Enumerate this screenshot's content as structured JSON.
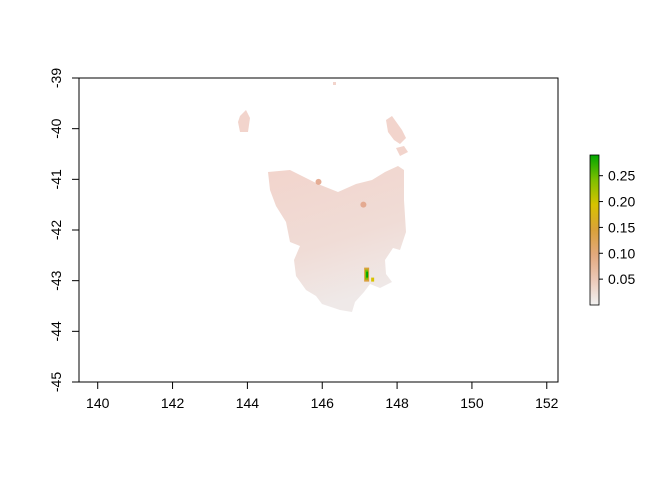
{
  "chart_data": {
    "type": "heatmap",
    "title": "",
    "xlabel": "",
    "ylabel": "",
    "xlim": [
      139.5,
      152.3
    ],
    "ylim": [
      -45,
      -39
    ],
    "x_ticks": [
      "140",
      "142",
      "144",
      "146",
      "148",
      "150",
      "152"
    ],
    "y_ticks": [
      "-39",
      "-40",
      "-41",
      "-42",
      "-43",
      "-44",
      "-45"
    ],
    "legend": {
      "placement": "right",
      "ticks": [
        "0.05",
        "0.10",
        "0.15",
        "0.20",
        "0.25"
      ],
      "range": [
        0.0,
        0.29
      ],
      "colors": [
        "#f2f2f2",
        "#ecc9b8",
        "#e3a97e",
        "#d9a13a",
        "#d8c200",
        "#7fc000",
        "#00a600"
      ]
    },
    "region": "Tasmania",
    "value_background": 0.02,
    "hotspots": [
      {
        "lon": 147.2,
        "lat": -42.9,
        "value": 0.28
      },
      {
        "lon": 147.1,
        "lat": -41.5,
        "value": 0.06
      },
      {
        "lon": 145.9,
        "lat": -41.05,
        "value": 0.05
      }
    ]
  }
}
